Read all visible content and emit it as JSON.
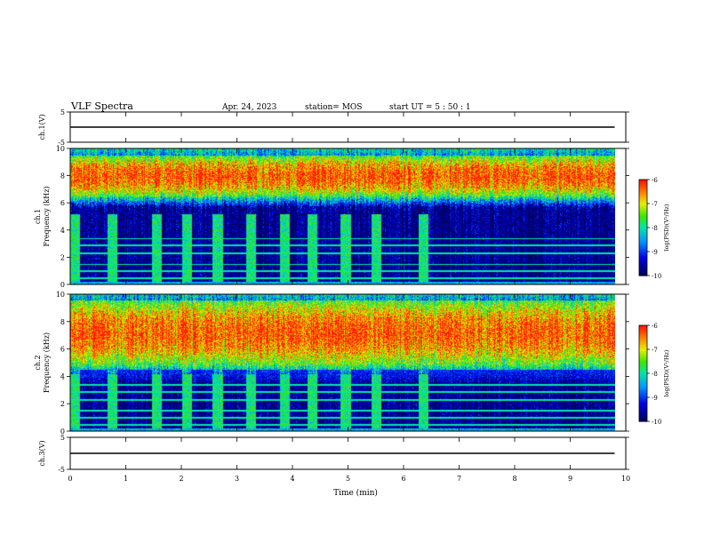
{
  "header": {
    "title": "VLF Spectra",
    "date": "Apr. 24, 2023",
    "station": "station= MOS",
    "start": "start UT = 5 : 50 : 1"
  },
  "chart_data": [
    {
      "type": "line",
      "panel": "ch1-waveform",
      "ylabel": "ch.1(V)",
      "ylim": [
        -5,
        5
      ],
      "yticks": [
        "5",
        "-5"
      ],
      "xlim": [
        0,
        10
      ],
      "series": [
        {
          "x": [
            0,
            9.8
          ],
          "values": [
            0,
            0
          ]
        }
      ]
    },
    {
      "type": "heatmap",
      "panel": "ch1-spectrogram",
      "ylabel": "ch.1\nFrequency (kHz)",
      "ylim": [
        0,
        10
      ],
      "yticks": [
        "0",
        "2",
        "4",
        "6",
        "8",
        "10"
      ],
      "xlim": [
        0,
        10
      ],
      "data_end_min": 9.8,
      "noise_band_khz": [
        6.5,
        9.5
      ],
      "burst_times_min": [
        0.08,
        0.75,
        1.55,
        2.1,
        2.65,
        3.25,
        3.85,
        4.35,
        4.95,
        5.5,
        6.35
      ],
      "burst_top_khz": 5.2,
      "colorbar": {
        "label": "log(PSD)(V²/Hz)",
        "ticks": [
          "-6",
          "-7",
          "-8",
          "-9",
          "-10"
        ],
        "range": [
          -10,
          -6
        ]
      }
    },
    {
      "type": "heatmap",
      "panel": "ch2-spectrogram",
      "ylabel": "ch.2\nFrequency (kHz)",
      "ylim": [
        0,
        10
      ],
      "yticks": [
        "0",
        "2",
        "4",
        "6",
        "8",
        "10"
      ],
      "xlim": [
        0,
        10
      ],
      "data_end_min": 9.8,
      "noise_band_khz": [
        4.8,
        9.6
      ],
      "burst_times_min": [
        0.08,
        0.75,
        1.55,
        2.1,
        2.65,
        3.25,
        3.85,
        4.35,
        4.95,
        5.5,
        6.35
      ],
      "burst_top_khz": 4.2,
      "colorbar": {
        "label": "log(PSD)(V²/Hz)",
        "ticks": [
          "-6",
          "-7",
          "-8",
          "-9",
          "-10"
        ],
        "range": [
          -10,
          -6
        ]
      }
    },
    {
      "type": "line",
      "panel": "ch3-waveform",
      "ylabel": "ch.3(V)",
      "ylim": [
        -5,
        5
      ],
      "yticks": [
        "5",
        "-5"
      ],
      "xlim": [
        0,
        10
      ],
      "series": [
        {
          "x": [
            0,
            9.8
          ],
          "values": [
            0,
            0
          ]
        }
      ]
    }
  ],
  "xaxis": {
    "label": "Time (min)",
    "ticks": [
      "0",
      "1",
      "2",
      "3",
      "4",
      "5",
      "6",
      "7",
      "8",
      "9",
      "10"
    ],
    "range": [
      0,
      10
    ]
  },
  "colors": {
    "low": "#000060",
    "mid": "#00e000",
    "high": "#ff2000",
    "line": "#000000"
  }
}
